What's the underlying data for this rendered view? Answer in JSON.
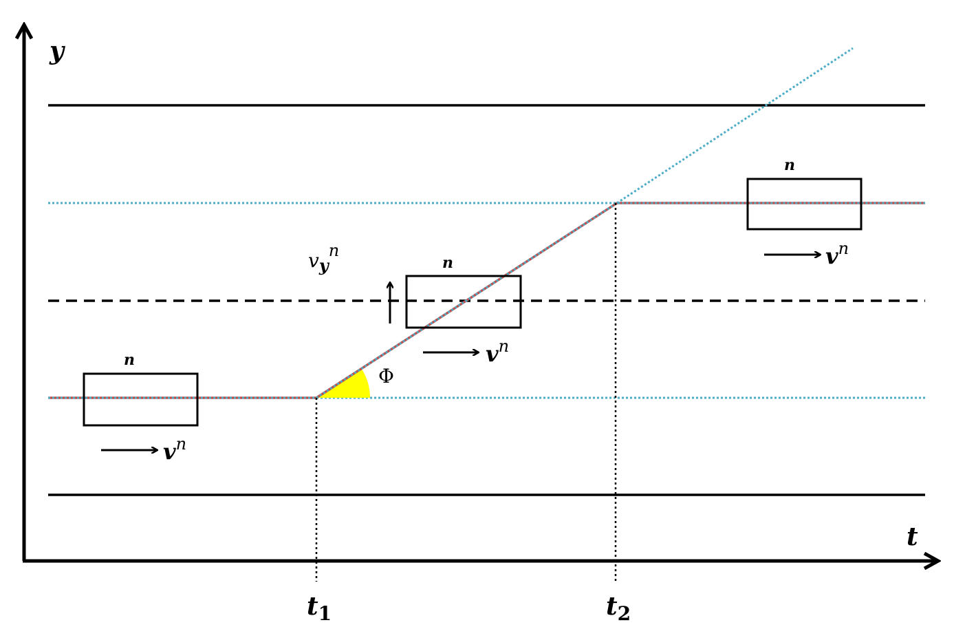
{
  "axes": {
    "y": "y",
    "t": "t"
  },
  "times": [
    {
      "base": "t",
      "sub": "1"
    },
    {
      "base": "t",
      "sub": "2"
    }
  ],
  "vehicles": [
    {
      "label": "n",
      "velocity": {
        "base": "v",
        "sup": "n"
      }
    },
    {
      "label": "n",
      "velocity": {
        "base": "v",
        "sup": "n"
      }
    },
    {
      "label": "n",
      "velocity": {
        "base": "v",
        "sup": "n"
      }
    }
  ],
  "lateral_velocity": {
    "base": "v",
    "sub": "y",
    "sup": "n"
  },
  "angle": "Φ"
}
